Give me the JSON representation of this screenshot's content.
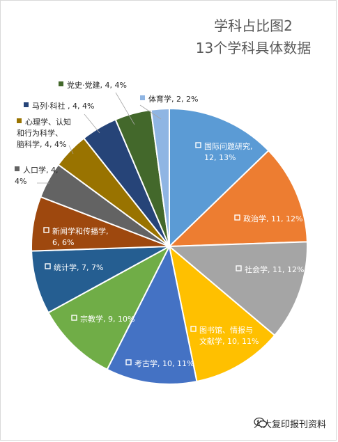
{
  "title_line1": "学科占比图2",
  "title_line2": "13个学科具体数据",
  "watermark": "人大复印报刊资料",
  "chart_data": {
    "type": "pie",
    "title": "学科占比图2 13个学科具体数据",
    "start_angle_deg": 0,
    "direction": "clockwise",
    "slices": [
      {
        "label": "国际问题研究",
        "value": 12,
        "percent": "13%",
        "color": "#5b9bd5",
        "label_lines": [
          "国际问题研究,",
          "12, 13%"
        ]
      },
      {
        "label": "政治学",
        "value": 11,
        "percent": "12%",
        "color": "#ed7d31",
        "label_lines": [
          "政治学, 11, 12%"
        ]
      },
      {
        "label": "社会学",
        "value": 11,
        "percent": "12%",
        "color": "#a5a5a5",
        "label_lines": [
          "社会学, 11, 12%"
        ]
      },
      {
        "label": "图书馆、情报与文献学",
        "value": 10,
        "percent": "11%",
        "color": "#ffc000",
        "label_lines": [
          "图书馆、情报与",
          "文献学, 10, 11%"
        ]
      },
      {
        "label": "考古学",
        "value": 10,
        "percent": "11%",
        "color": "#4472c4",
        "label_lines": [
          "考古学, 10, 11%"
        ]
      },
      {
        "label": "宗教学",
        "value": 9,
        "percent": "10%",
        "color": "#70ad47",
        "label_lines": [
          "宗教学, 9, 10%"
        ]
      },
      {
        "label": "统计学",
        "value": 7,
        "percent": "7%",
        "color": "#255e91",
        "label_lines": [
          "统计学, 7, 7%"
        ]
      },
      {
        "label": "新闻学和传播学",
        "value": 6,
        "percent": "6%",
        "color": "#9e480e",
        "label_lines": [
          "新闻学和传播学,",
          "6, 6%"
        ]
      },
      {
        "label": "人口学",
        "value": 4,
        "percent": "4%",
        "color": "#636363",
        "label_lines": [
          "人口学, 4,",
          "4%"
        ]
      },
      {
        "label": "心理学、认知和行为科学、脑科学",
        "value": 4,
        "percent": "4%",
        "color": "#997300",
        "label_lines": [
          "心理学、认知",
          "和行为科学、",
          "脑科学, 4, 4%"
        ]
      },
      {
        "label": "马列·科社",
        "value": 4,
        "percent": "4%",
        "color": "#264478",
        "label_lines": [
          "马列·科社 , 4, 4%"
        ]
      },
      {
        "label": "党史·党建",
        "value": 4,
        "percent": "4%",
        "color": "#43682b",
        "label_lines": [
          "党史·党建, 4, 4%"
        ]
      },
      {
        "label": "体育学",
        "value": 2,
        "percent": "2%",
        "color": "#8fb5e3",
        "label_lines": [
          "体育学, 2, 2%"
        ]
      }
    ]
  }
}
